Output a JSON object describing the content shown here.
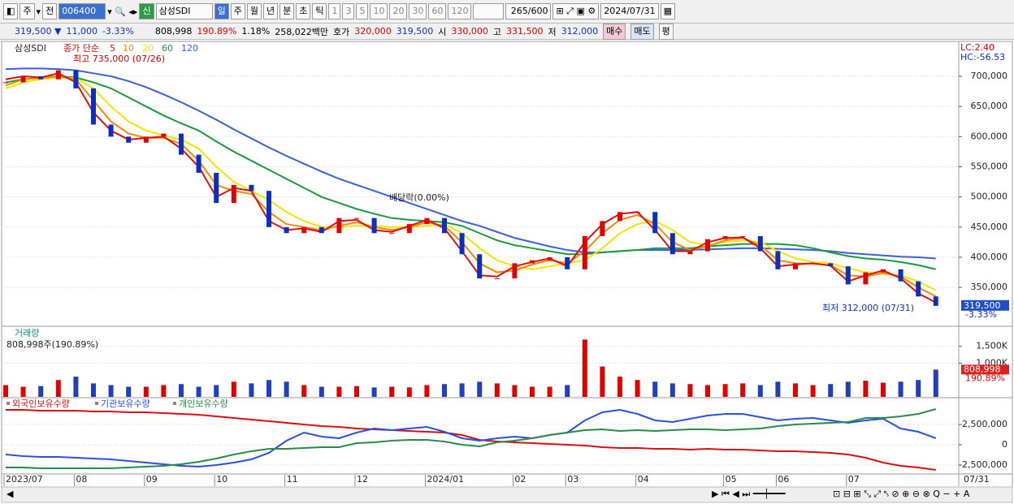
{
  "toolbar": {
    "items": [
      "주",
      "전",
      "006400",
      "신",
      "삼성SDI",
      "일",
      "주",
      "월",
      "년",
      "분",
      "초",
      "틱",
      "1",
      "3",
      "5",
      "10",
      "20",
      "30",
      "60",
      "120",
      "265/600",
      "2024/07/31"
    ]
  },
  "infobar": {
    "price": "319,500 ▼",
    "change": "11,000",
    "rate": "-3.33%",
    "volume": "808,998",
    "volume_rate": "190.89%",
    "turnover": "1.18%",
    "amount": "258,022백만",
    "ask_label": "호가",
    "ask": "320,000",
    "bid": "319,500",
    "open_label": "시",
    "open": "330,000",
    "high_label": "고",
    "high": "331,500",
    "low_label": "저",
    "low": "312,000",
    "buy": "매수",
    "sell": "매도",
    "avg": "평"
  },
  "chart_data": [
    {
      "type": "candle-line",
      "title": "삼성SDI",
      "legend_label": "종가 단순",
      "ylim": [
        295000,
        752500
      ],
      "yticks": [
        {
          "value": 350000,
          "label": "350,000"
        },
        {
          "value": 400000,
          "label": "400,000"
        },
        {
          "value": 450000,
          "label": "450,000"
        },
        {
          "value": 500000,
          "label": "500,000"
        },
        {
          "value": 550000,
          "label": "550,000"
        },
        {
          "value": 600000,
          "label": "600,000"
        },
        {
          "value": 650000,
          "label": "650,000"
        },
        {
          "value": 700000,
          "label": "700,000"
        }
      ],
      "grid": true,
      "up_color": "#e00000",
      "down_color": "#0a2fc0",
      "values": [
        690000,
        700000,
        695000,
        710000,
        680000,
        620000,
        600000,
        590000,
        600000,
        605000,
        570000,
        540000,
        490000,
        520000,
        510000,
        450000,
        440000,
        450000,
        440000,
        465000,
        465000,
        440000,
        440000,
        455000,
        465000,
        440000,
        405000,
        365000,
        365000,
        390000,
        395000,
        400000,
        380000,
        435000,
        460000,
        475000,
        475000,
        440000,
        405000,
        410000,
        430000,
        435000,
        435000,
        410000,
        380000,
        390000,
        390000,
        385000,
        355000,
        375000,
        380000,
        360000,
        335000,
        319500
      ],
      "value_labels": [
        null,
        null,
        null,
        null,
        null,
        null,
        null,
        null,
        null,
        null,
        null,
        null,
        null,
        null,
        null,
        null,
        null,
        null,
        null,
        null,
        null,
        null,
        null,
        null,
        null,
        null,
        null,
        null,
        null,
        null,
        null,
        null,
        null,
        null,
        null,
        null,
        null,
        null,
        null,
        null,
        null,
        null,
        null,
        null,
        null,
        null,
        null,
        null,
        null,
        null,
        null,
        null,
        null,
        "319,500"
      ],
      "series": [
        {
          "name": "5",
          "color": "#e01010",
          "values": [
            695000,
            700000,
            698000,
            705000,
            690000,
            640000,
            610000,
            595000,
            598000,
            600000,
            580000,
            550000,
            500000,
            515000,
            510000,
            460000,
            445000,
            448000,
            442000,
            460000,
            462000,
            445000,
            442000,
            452000,
            462000,
            448000,
            410000,
            370000,
            368000,
            385000,
            392000,
            398000,
            385000,
            425000,
            455000,
            472000,
            475000,
            445000,
            410000,
            410000,
            425000,
            432000,
            433000,
            415000,
            385000,
            388000,
            390000,
            386000,
            360000,
            370000,
            378000,
            365000,
            340000,
            325000
          ]
        },
        {
          "name": "10",
          "color": "#f08a00",
          "values": [
            685000,
            695000,
            697000,
            700000,
            695000,
            660000,
            625000,
            605000,
            598000,
            598000,
            588000,
            560000,
            520000,
            510000,
            505000,
            475000,
            455000,
            450000,
            445000,
            452000,
            458000,
            450000,
            445000,
            450000,
            458000,
            452000,
            425000,
            390000,
            375000,
            378000,
            388000,
            395000,
            390000,
            410000,
            440000,
            462000,
            470000,
            455000,
            425000,
            412000,
            418000,
            428000,
            432000,
            420000,
            395000,
            390000,
            389000,
            387000,
            370000,
            368000,
            374000,
            368000,
            350000,
            335000
          ]
        },
        {
          "name": "20",
          "color": "#f2e400",
          "values": [
            680000,
            690000,
            695000,
            698000,
            697000,
            680000,
            650000,
            625000,
            610000,
            602000,
            595000,
            580000,
            550000,
            525000,
            510000,
            495000,
            475000,
            460000,
            450000,
            450000,
            452000,
            452000,
            450000,
            450000,
            452000,
            455000,
            440000,
            415000,
            395000,
            385000,
            380000,
            385000,
            390000,
            395000,
            415000,
            440000,
            455000,
            460000,
            445000,
            425000,
            420000,
            425000,
            428000,
            425000,
            410000,
            398000,
            392000,
            390000,
            382000,
            375000,
            372000,
            370000,
            360000,
            345000
          ]
        },
        {
          "name": "60",
          "color": "#1a9a3a",
          "values": [
            690000,
            695000,
            698000,
            700000,
            698000,
            690000,
            680000,
            665000,
            650000,
            635000,
            622000,
            610000,
            592000,
            575000,
            560000,
            545000,
            530000,
            515000,
            500000,
            490000,
            480000,
            472000,
            465000,
            462000,
            460000,
            458000,
            452000,
            440000,
            428000,
            420000,
            415000,
            410000,
            405000,
            405000,
            408000,
            410000,
            412000,
            415000,
            415000,
            415000,
            418000,
            420000,
            422000,
            422000,
            422000,
            420000,
            415000,
            408000,
            402000,
            398000,
            396000,
            392000,
            387000,
            380000
          ]
        },
        {
          "name": "120",
          "color": "#3a5fdf",
          "values": [
            712000,
            713000,
            713000,
            712000,
            710000,
            705000,
            700000,
            692000,
            682000,
            670000,
            657000,
            643000,
            628000,
            612000,
            597000,
            582000,
            568000,
            555000,
            542000,
            530000,
            520000,
            510000,
            500000,
            490000,
            480000,
            470000,
            460000,
            452000,
            442000,
            432000,
            425000,
            418000,
            412000,
            408000,
            408000,
            410000,
            412000,
            412000,
            412000,
            412000,
            413000,
            414000,
            415000,
            415000,
            414000,
            413000,
            412000,
            410000,
            407000,
            405000,
            403000,
            401000,
            400000,
            398000
          ]
        }
      ],
      "annotations": [
        "최고 735,000 (07/26)",
        "최저 312,000 (07/31)",
        "배당락(0.00%)"
      ],
      "indicators": [
        "LC:2.40",
        "HC:-56.53"
      ],
      "change_label": "-3.33%"
    },
    {
      "type": "bar",
      "title": "거래량",
      "subtitle": "808,998주(190.89%)",
      "ylim": [
        0,
        1950000
      ],
      "yticks": [
        {
          "value": 1000000,
          "label": "1,000K"
        },
        {
          "value": 1500000,
          "label": "1,500K"
        }
      ],
      "grid": true,
      "values": [
        350000,
        300000,
        320000,
        500000,
        600000,
        400000,
        350000,
        300000,
        300000,
        350000,
        380000,
        300000,
        350000,
        450000,
        400000,
        500000,
        450000,
        350000,
        300000,
        300000,
        320000,
        280000,
        300000,
        280000,
        350000,
        380000,
        400000,
        450000,
        400000,
        350000,
        300000,
        300000,
        350000,
        1700000,
        900000,
        600000,
        500000,
        450000,
        400000,
        380000,
        350000,
        380000,
        400000,
        350000,
        450000,
        400000,
        350000,
        380000,
        450000,
        480000,
        420000,
        450000,
        500000,
        808998
      ],
      "value_labels": [
        null,
        null,
        null,
        null,
        null,
        null,
        null,
        null,
        null,
        null,
        null,
        null,
        null,
        null,
        null,
        null,
        null,
        null,
        null,
        null,
        null,
        null,
        null,
        null,
        null,
        null,
        null,
        null,
        null,
        null,
        null,
        null,
        null,
        null,
        null,
        null,
        null,
        null,
        null,
        null,
        null,
        null,
        null,
        null,
        null,
        null,
        null,
        null,
        null,
        null,
        null,
        null,
        null,
        "808,998"
      ],
      "rate_label": "190.89%"
    },
    {
      "type": "line",
      "ylim": [
        -3500000,
        5600000
      ],
      "yticks": [
        {
          "value": -2500000,
          "label": "-2,500,000"
        },
        0,
        {
          "value": 2500000,
          "label": "2,500,000"
        }
      ],
      "grid": true,
      "categories": [
        "2023/07",
        null,
        null,
        null,
        "08",
        null,
        null,
        null,
        "09",
        null,
        null,
        null,
        "10",
        null,
        null,
        null,
        "11",
        null,
        null,
        null,
        "12",
        null,
        null,
        null,
        "2024/01",
        null,
        null,
        null,
        null,
        "02",
        null,
        null,
        "03",
        null,
        null,
        null,
        "04",
        null,
        null,
        null,
        null,
        "05",
        null,
        null,
        "06",
        null,
        null,
        null,
        "07",
        null,
        null,
        null,
        null,
        null
      ],
      "end_label": "07/31",
      "series": [
        {
          "name": "외국인보유수량",
          "color": "#d41010",
          "values": [
            4300000,
            4300000,
            4200000,
            4200000,
            4200000,
            4100000,
            4100000,
            4000000,
            4000000,
            3900000,
            3800000,
            3700000,
            3500000,
            3300000,
            3100000,
            2900000,
            2700000,
            2500000,
            2300000,
            2200000,
            2000000,
            1900000,
            1800000,
            1700000,
            1600000,
            1500000,
            1200000,
            600000,
            400000,
            300000,
            200000,
            100000,
            0,
            -100000,
            -300000,
            -400000,
            -400000,
            -500000,
            -500000,
            -600000,
            -500000,
            -600000,
            -600000,
            -700000,
            -800000,
            -800000,
            -900000,
            -1000000,
            -1200000,
            -1600000,
            -2200000,
            -2600000,
            -2800000,
            -3100000
          ]
        },
        {
          "name": "기관보유수량",
          "color": "#2a50e0",
          "values": [
            -1200000,
            -1400000,
            -1500000,
            -1500000,
            -1600000,
            -1700000,
            -1800000,
            -2000000,
            -2200000,
            -2400000,
            -2600000,
            -2700000,
            -2500000,
            -2200000,
            -1800000,
            -1000000,
            500000,
            1500000,
            1000000,
            800000,
            1500000,
            2000000,
            1800000,
            2000000,
            2200000,
            1600000,
            800000,
            500000,
            800000,
            1000000,
            800000,
            1200000,
            1500000,
            3000000,
            4000000,
            4300000,
            3800000,
            3000000,
            2800000,
            3200000,
            3600000,
            3800000,
            3800000,
            3400000,
            3000000,
            3200000,
            3300000,
            3000000,
            2700000,
            3000000,
            3200000,
            2000000,
            1600000,
            800000
          ]
        },
        {
          "name": "개인보유수량",
          "color": "#2a8a4a",
          "values": [
            -2800000,
            -2800000,
            -2900000,
            -2900000,
            -2900000,
            -2900000,
            -2900000,
            -2800000,
            -2700000,
            -2600000,
            -2400000,
            -2100000,
            -1700000,
            -1200000,
            -800000,
            -500000,
            -500000,
            -400000,
            -300000,
            -300000,
            200000,
            300000,
            500000,
            600000,
            600000,
            400000,
            0,
            -200000,
            300000,
            500000,
            800000,
            1200000,
            1500000,
            1800000,
            1900000,
            1700000,
            1800000,
            1700000,
            1800000,
            1900000,
            1900000,
            1800000,
            1900000,
            2000000,
            2300000,
            2500000,
            2600000,
            2700000,
            2800000,
            3300000,
            3300000,
            3500000,
            3800000,
            4400000
          ]
        }
      ]
    }
  ]
}
